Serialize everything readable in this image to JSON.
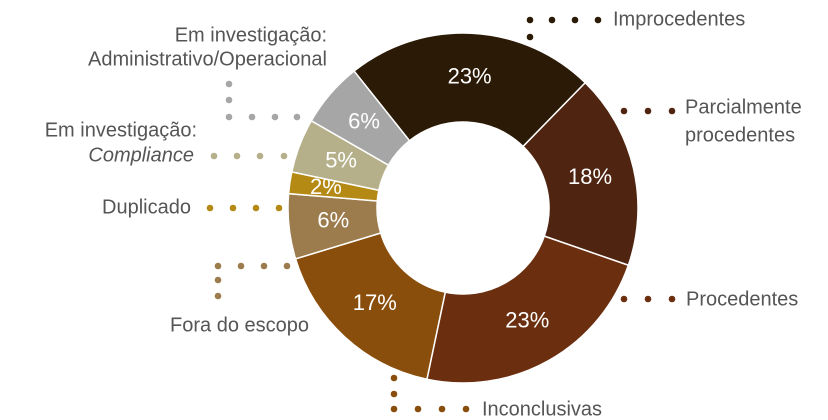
{
  "chart_data": {
    "type": "donut",
    "categories": [
      [
        "Improcedentes"
      ],
      [
        "Parcialmente",
        "procedentes"
      ],
      [
        "Procedentes"
      ],
      [
        "Inconclusivas"
      ],
      [
        "Fora do escopo"
      ],
      [
        "Duplicado"
      ],
      [
        "Em investigação:",
        "Compliance"
      ],
      [
        "Em investigação:",
        "Administrativo/Operacional"
      ]
    ],
    "values": [
      23,
      18,
      23,
      17,
      6,
      2,
      5,
      6
    ],
    "value_labels": [
      "23%",
      "18%",
      "23%",
      "17%",
      "6%",
      "2%",
      "5%",
      "6%"
    ],
    "colors": [
      "#2b1a05",
      "#4f2410",
      "#6b2f10",
      "#8a4e0c",
      "#9c7c4d",
      "#b48a14",
      "#b5b08a",
      "#a6a6a6"
    ]
  }
}
